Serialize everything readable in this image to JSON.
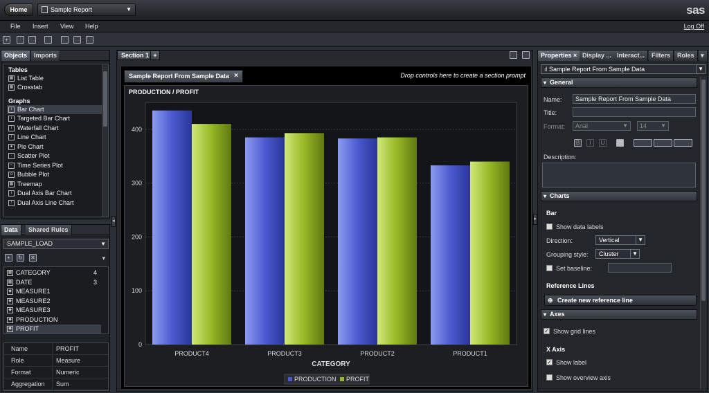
{
  "header": {
    "home_label": "Home",
    "report_title": "Sample Report",
    "logo": "sas"
  },
  "menu": {
    "items": [
      "File",
      "Insert",
      "View",
      "Help"
    ],
    "logoff": "Log Off"
  },
  "left_top": {
    "tabs": [
      "Objects",
      "Imports"
    ],
    "tables_heading": "Tables",
    "tables": [
      "List Table",
      "Crosstab"
    ],
    "graphs_heading": "Graphs",
    "graphs": [
      "Bar Chart",
      "Targeted Bar Chart",
      "Waterfall Chart",
      "Line Chart",
      "Pie Chart",
      "Scatter Plot",
      "Time Series Plot",
      "Bubble Plot",
      "Treemap",
      "Dual Axis Bar Chart",
      "Dual Axis Line Chart"
    ]
  },
  "left_bottom": {
    "tabs": [
      "Data",
      "Shared Rules"
    ],
    "source": "SAMPLE_LOAD",
    "items": [
      {
        "name": "CATEGORY",
        "count": "4"
      },
      {
        "name": "DATE",
        "count": "3"
      },
      {
        "name": "MEASURE1",
        "count": ""
      },
      {
        "name": "MEASURE2",
        "count": ""
      },
      {
        "name": "MEASURE3",
        "count": ""
      },
      {
        "name": "PRODUCTION",
        "count": ""
      },
      {
        "name": "PROFIT",
        "count": ""
      }
    ],
    "props": [
      {
        "key": "Name",
        "value": "PROFIT"
      },
      {
        "key": "Role",
        "value": "Measure"
      },
      {
        "key": "Format",
        "value": "Numeric"
      },
      {
        "key": "Aggregation",
        "value": "Sum"
      }
    ]
  },
  "center": {
    "section_tab": "Section 1",
    "report_tab": "Sample Report From Sample Data",
    "prompt_text": "Drop controls here to create a section prompt"
  },
  "chart_data": {
    "type": "bar",
    "title": "PRODUCTION / PROFIT",
    "xlabel": "CATEGORY",
    "ylabel": "",
    "categories": [
      "PRODUCT4",
      "PRODUCT3",
      "PRODUCT2",
      "PRODUCT1"
    ],
    "series": [
      {
        "name": "PRODUCTION",
        "values": [
          435,
          385,
          383,
          333
        ],
        "color": "#4b5bd0"
      },
      {
        "name": "PROFIT",
        "values": [
          410,
          393,
          385,
          340
        ],
        "color": "#96b824"
      }
    ],
    "ylim": [
      0,
      450
    ],
    "yticks": [
      0,
      100,
      200,
      300,
      400
    ],
    "grid": true,
    "legend": "bottom"
  },
  "right": {
    "tabs": [
      "Properties",
      "Display ...",
      "Interact...",
      "Filters",
      "Roles"
    ],
    "object_select": "Sample Report From Sample Data",
    "general_heading": "General",
    "name_label": "Name:",
    "name_value": "Sample Report From Sample Data",
    "title_label": "Title:",
    "title_value": "",
    "format_label": "Format:",
    "font_value": "Arial",
    "size_value": "14",
    "description_label": "Description:",
    "charts_heading": "Charts",
    "bar_heading": "Bar",
    "show_data_labels": "Show data labels",
    "direction_label": "Direction:",
    "direction_value": "Vertical",
    "grouping_label": "Grouping style:",
    "grouping_value": "Cluster",
    "set_baseline": "Set baseline:",
    "reference_lines_heading": "Reference Lines",
    "create_ref_line": "Create new reference line",
    "axes_heading": "Axes",
    "show_grid_lines": "Show grid lines",
    "x_axis_heading": "X Axis",
    "show_label": "Show label",
    "show_overview_axis": "Show overview axis"
  }
}
